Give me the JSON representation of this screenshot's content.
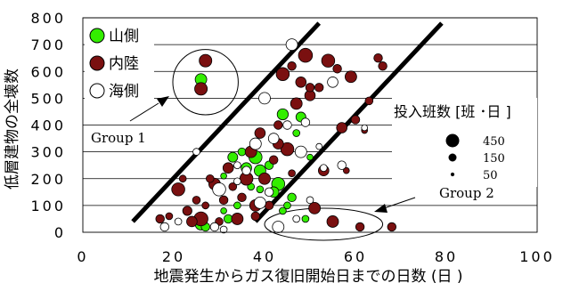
{
  "chart_data": {
    "type": "scatter",
    "xlabel": "地震発生からガス復旧開始日までの日数 (日 )",
    "ylabel": "低層建物の全壊数",
    "xlim": [
      0,
      100
    ],
    "ylim": [
      0,
      800
    ],
    "x_ticks": [
      "0",
      "20",
      "40",
      "60",
      "80",
      "100"
    ],
    "y_ticks": [
      "0",
      "100",
      "200",
      "300",
      "400",
      "500",
      "600",
      "700",
      "800"
    ],
    "grid": "horizontal",
    "legend_position": "top-left",
    "series": [
      {
        "name": "山側",
        "color": "#33ee00",
        "points": [
          {
            "x": 26,
            "y": 570,
            "s": 110
          },
          {
            "x": 26,
            "y": 30,
            "s": 110
          },
          {
            "x": 27,
            "y": 20,
            "s": 60
          },
          {
            "x": 30,
            "y": 150,
            "s": 40
          },
          {
            "x": 31,
            "y": 210,
            "s": 30
          },
          {
            "x": 32,
            "y": 50,
            "s": 60
          },
          {
            "x": 33,
            "y": 280,
            "s": 80
          },
          {
            "x": 34,
            "y": 100,
            "s": 40
          },
          {
            "x": 35,
            "y": 300,
            "s": 50
          },
          {
            "x": 36,
            "y": 240,
            "s": 90
          },
          {
            "x": 37,
            "y": 170,
            "s": 40
          },
          {
            "x": 38,
            "y": 280,
            "s": 140
          },
          {
            "x": 39,
            "y": 230,
            "s": 110
          },
          {
            "x": 40,
            "y": 200,
            "s": 60
          },
          {
            "x": 41,
            "y": 250,
            "s": 60
          },
          {
            "x": 42,
            "y": 150,
            "s": 90
          },
          {
            "x": 43,
            "y": 180,
            "s": 140
          },
          {
            "x": 44,
            "y": 440,
            "s": 100
          },
          {
            "x": 45,
            "y": 100,
            "s": 40
          },
          {
            "x": 46,
            "y": 130,
            "s": 60
          },
          {
            "x": 47,
            "y": 370,
            "s": 40
          },
          {
            "x": 48,
            "y": 430,
            "s": 80
          },
          {
            "x": 49,
            "y": 50,
            "s": 40
          },
          {
            "x": 50,
            "y": 280,
            "s": 30
          },
          {
            "x": 31,
            "y": 80,
            "s": 30
          },
          {
            "x": 44,
            "y": 80,
            "s": 40
          },
          {
            "x": 39,
            "y": 160,
            "s": 40
          }
        ]
      },
      {
        "name": "内陸",
        "color": "#7a1010",
        "points": [
          {
            "x": 27,
            "y": 640,
            "s": 130
          },
          {
            "x": 26,
            "y": 535,
            "s": 130
          },
          {
            "x": 17,
            "y": 50,
            "s": 60
          },
          {
            "x": 19,
            "y": 60,
            "s": 40
          },
          {
            "x": 21,
            "y": 160,
            "s": 140
          },
          {
            "x": 22,
            "y": 200,
            "s": 40
          },
          {
            "x": 23,
            "y": 80,
            "s": 70
          },
          {
            "x": 24,
            "y": 40,
            "s": 90
          },
          {
            "x": 25,
            "y": 120,
            "s": 50
          },
          {
            "x": 26,
            "y": 50,
            "s": 160
          },
          {
            "x": 27,
            "y": 100,
            "s": 40
          },
          {
            "x": 28,
            "y": 200,
            "s": 50
          },
          {
            "x": 29,
            "y": 180,
            "s": 110
          },
          {
            "x": 30,
            "y": 40,
            "s": 50
          },
          {
            "x": 31,
            "y": 120,
            "s": 60
          },
          {
            "x": 32,
            "y": 240,
            "s": 90
          },
          {
            "x": 33,
            "y": 170,
            "s": 50
          },
          {
            "x": 34,
            "y": 50,
            "s": 110
          },
          {
            "x": 35,
            "y": 130,
            "s": 60
          },
          {
            "x": 36,
            "y": 200,
            "s": 140
          },
          {
            "x": 37,
            "y": 300,
            "s": 110
          },
          {
            "x": 38,
            "y": 60,
            "s": 60
          },
          {
            "x": 39,
            "y": 370,
            "s": 90
          },
          {
            "x": 40,
            "y": 200,
            "s": 110
          },
          {
            "x": 41,
            "y": 100,
            "s": 60
          },
          {
            "x": 42,
            "y": 270,
            "s": 60
          },
          {
            "x": 43,
            "y": 330,
            "s": 90
          },
          {
            "x": 44,
            "y": 590,
            "s": 140
          },
          {
            "x": 45,
            "y": 310,
            "s": 140
          },
          {
            "x": 46,
            "y": 620,
            "s": 60
          },
          {
            "x": 47,
            "y": 480,
            "s": 110
          },
          {
            "x": 48,
            "y": 560,
            "s": 90
          },
          {
            "x": 49,
            "y": 660,
            "s": 160
          },
          {
            "x": 50,
            "y": 510,
            "s": 90
          },
          {
            "x": 51,
            "y": 90,
            "s": 110
          },
          {
            "x": 52,
            "y": 540,
            "s": 60
          },
          {
            "x": 53,
            "y": 230,
            "s": 90
          },
          {
            "x": 54,
            "y": 640,
            "s": 140
          },
          {
            "x": 55,
            "y": 40,
            "s": 110
          },
          {
            "x": 56,
            "y": 610,
            "s": 60
          },
          {
            "x": 57,
            "y": 390,
            "s": 90
          },
          {
            "x": 58,
            "y": 230,
            "s": 30
          },
          {
            "x": 59,
            "y": 580,
            "s": 110
          },
          {
            "x": 60,
            "y": 420,
            "s": 60
          },
          {
            "x": 61,
            "y": 20,
            "s": 60
          },
          {
            "x": 62,
            "y": 380,
            "s": 30
          },
          {
            "x": 63,
            "y": 490,
            "s": 50
          },
          {
            "x": 65,
            "y": 650,
            "s": 60
          },
          {
            "x": 66,
            "y": 620,
            "s": 60
          },
          {
            "x": 68,
            "y": 20,
            "s": 60
          },
          {
            "x": 46,
            "y": 220,
            "s": 40
          },
          {
            "x": 43,
            "y": 400,
            "s": 60
          },
          {
            "x": 50,
            "y": 540,
            "s": 60
          },
          {
            "x": 38,
            "y": 100,
            "s": 110
          }
        ]
      },
      {
        "name": "海側",
        "color": "#ffffff",
        "points": [
          {
            "x": 18,
            "y": 20,
            "s": 60
          },
          {
            "x": 21,
            "y": 40,
            "s": 40
          },
          {
            "x": 25,
            "y": 300,
            "s": 40
          },
          {
            "x": 29,
            "y": 20,
            "s": 60
          },
          {
            "x": 30,
            "y": 160,
            "s": 140
          },
          {
            "x": 31,
            "y": 10,
            "s": 40
          },
          {
            "x": 34,
            "y": 190,
            "s": 40
          },
          {
            "x": 36,
            "y": 230,
            "s": 60
          },
          {
            "x": 38,
            "y": 330,
            "s": 110
          },
          {
            "x": 39,
            "y": 110,
            "s": 110
          },
          {
            "x": 40,
            "y": 500,
            "s": 110
          },
          {
            "x": 41,
            "y": 150,
            "s": 60
          },
          {
            "x": 42,
            "y": 350,
            "s": 90
          },
          {
            "x": 43,
            "y": 20,
            "s": 110
          },
          {
            "x": 45,
            "y": 400,
            "s": 60
          },
          {
            "x": 46,
            "y": 700,
            "s": 110
          },
          {
            "x": 47,
            "y": 50,
            "s": 40
          },
          {
            "x": 48,
            "y": 300,
            "s": 110
          },
          {
            "x": 49,
            "y": 410,
            "s": 60
          },
          {
            "x": 50,
            "y": 120,
            "s": 40
          },
          {
            "x": 53,
            "y": 240,
            "s": 40
          },
          {
            "x": 55,
            "y": 560,
            "s": 90
          },
          {
            "x": 57,
            "y": 250,
            "s": 60
          },
          {
            "x": 62,
            "y": 390,
            "s": 30
          },
          {
            "x": 34,
            "y": 250,
            "s": 40
          },
          {
            "x": 52,
            "y": 320,
            "s": 30
          }
        ]
      }
    ],
    "legend": [
      "山側",
      "内陸",
      "海側"
    ],
    "size_legend": {
      "title": "投入班数 [班 ･日 ]",
      "entries": [
        {
          "label": "450",
          "s": 450
        },
        {
          "label": "150",
          "s": 150
        },
        {
          "label": "50",
          "s": 50
        }
      ]
    },
    "reference_lines": [
      {
        "from": [
          11,
          40
        ],
        "to": [
          52,
          780
        ]
      },
      {
        "from": [
          38,
          40
        ],
        "to": [
          79,
          780
        ]
      }
    ],
    "annotations": [
      {
        "text": "Group 1",
        "arrow_to": [
          20,
          530
        ],
        "circle_center": [
          27,
          560
        ],
        "circle_radius_days": 8
      },
      {
        "text": "Group 2",
        "arrow_to": [
          63,
          70
        ],
        "circle_center": [
          53,
          30
        ],
        "circle_radius_days": 13
      }
    ]
  }
}
